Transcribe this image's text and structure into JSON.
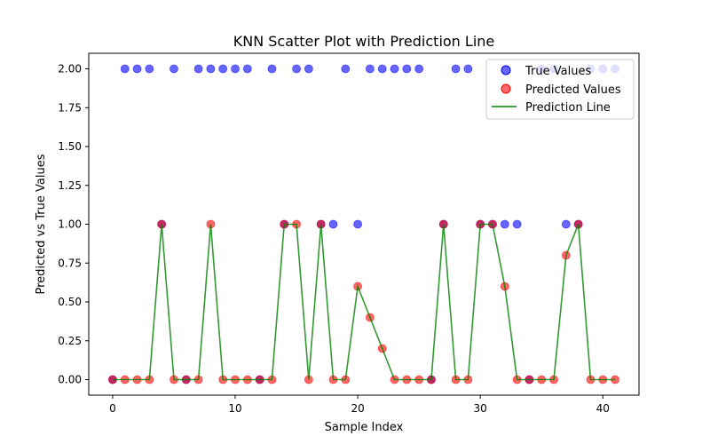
{
  "chart_data": {
    "type": "scatter",
    "title": "KNN Scatter Plot with Prediction Line",
    "xlabel": "Sample Index",
    "ylabel": "Predicted vs True Values",
    "xlim": [
      -1.95,
      42.95
    ],
    "ylim": [
      -0.1,
      2.1
    ],
    "xticks": [
      0,
      10,
      20,
      30,
      40
    ],
    "xtick_labels": [
      "0",
      "10",
      "20",
      "30",
      "40"
    ],
    "yticks": [
      0,
      0.25,
      0.5,
      0.75,
      1.0,
      1.25,
      1.5,
      1.75,
      2.0
    ],
    "ytick_labels": [
      "0.00",
      "0.25",
      "0.50",
      "0.75",
      "1.00",
      "1.25",
      "1.50",
      "1.75",
      "2.00"
    ],
    "grid": false,
    "legend_position": "top-right",
    "x": [
      0,
      1,
      2,
      3,
      4,
      5,
      6,
      7,
      8,
      9,
      10,
      11,
      12,
      13,
      14,
      15,
      16,
      17,
      18,
      19,
      20,
      21,
      22,
      23,
      24,
      25,
      26,
      27,
      28,
      29,
      30,
      31,
      32,
      33,
      34,
      35,
      36,
      37,
      38,
      39,
      40,
      41
    ],
    "series": [
      {
        "name": "True Values",
        "kind": "scatter",
        "color": "#0000ff",
        "values": [
          0,
          2,
          2,
          2,
          1,
          2,
          0,
          2,
          2,
          2,
          2,
          2,
          0,
          2,
          1,
          2,
          2,
          1,
          1,
          2,
          1,
          2,
          2,
          2,
          2,
          2,
          0,
          1,
          2,
          2,
          1,
          1,
          1,
          1,
          0,
          2,
          2,
          1,
          1,
          2,
          2,
          2
        ]
      },
      {
        "name": "Predicted Values",
        "kind": "scatter",
        "color": "#ff0000",
        "values": [
          0,
          0,
          0,
          0,
          1,
          0,
          0,
          0,
          1,
          0,
          0,
          0,
          0,
          0,
          1,
          1,
          0,
          1,
          0,
          0,
          0.6,
          0.4,
          0.2,
          0,
          0,
          0,
          0,
          1,
          0,
          0,
          1,
          1,
          0.6,
          0,
          0,
          0,
          0,
          0.8,
          1,
          0,
          0,
          0
        ]
      },
      {
        "name": "Prediction Line",
        "kind": "line",
        "color": "#008000",
        "values": [
          0,
          0,
          0,
          0,
          1,
          0,
          0,
          0,
          1,
          0,
          0,
          0,
          0,
          0,
          1,
          1,
          0,
          1,
          0,
          0,
          0.6,
          0.4,
          0.2,
          0,
          0,
          0,
          0,
          1,
          0,
          0,
          1,
          1,
          0.6,
          0,
          0,
          0,
          0,
          0.8,
          1,
          0,
          0,
          0
        ]
      }
    ]
  }
}
